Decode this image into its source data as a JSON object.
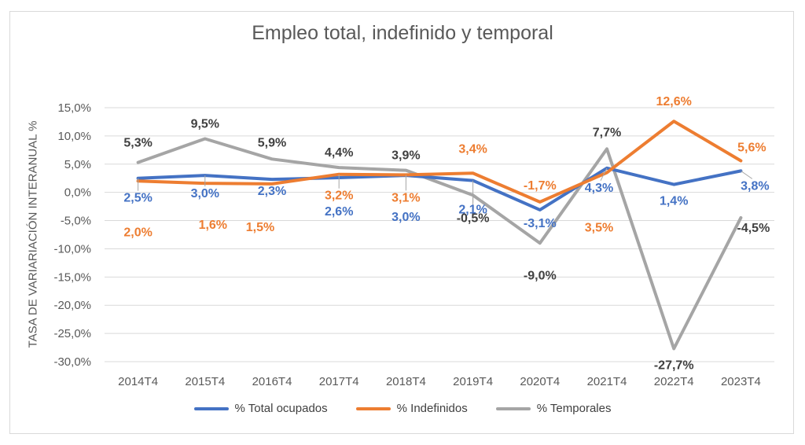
{
  "chart_data": {
    "type": "line",
    "title": "Empleo total, indefinido y temporal",
    "ylabel": "TASA DE VARIARIACIÓN INTERANUAL %",
    "xlabel": "",
    "categories": [
      "2014T4",
      "2015T4",
      "2016T4",
      "2017T4",
      "2018T4",
      "2019T4",
      "2020T4",
      "2021T4",
      "2022T4",
      "2023T4"
    ],
    "ylim": [
      -30,
      15
    ],
    "yticks": [
      15,
      10,
      5,
      0,
      -5,
      -10,
      -15,
      -20,
      -25,
      -30
    ],
    "ytick_labels": [
      "15,0%",
      "10,0%",
      "5,0%",
      "0,0%",
      "-5,0%",
      "-10,0%",
      "-15,0%",
      "-20,0%",
      "-25,0%",
      "-30,0%"
    ],
    "grid": true,
    "legend_position": "bottom",
    "series": [
      {
        "name": "% Total ocupados",
        "color": "#4472c4",
        "values": [
          2.5,
          3.0,
          2.3,
          2.6,
          3.0,
          2.1,
          -3.1,
          4.3,
          1.4,
          3.8
        ],
        "labels": [
          "2,5%",
          "3,0%",
          "2,3%",
          "2,6%",
          "3,0%",
          "2,1%",
          "-3,1%",
          "4,3%",
          "1,4%",
          "3,8%"
        ]
      },
      {
        "name": "% Indefinidos",
        "color": "#ed7d31",
        "values": [
          2.0,
          1.6,
          1.5,
          3.2,
          3.1,
          3.4,
          -1.7,
          3.5,
          12.6,
          5.6
        ],
        "labels": [
          "2,0%",
          "1,6%",
          "1,5%",
          "3,2%",
          "3,1%",
          "3,4%",
          "-1,7%",
          "3,5%",
          "12,6%",
          "5,6%"
        ]
      },
      {
        "name": "% Temporales",
        "color": "#a5a5a5",
        "values": [
          5.3,
          9.5,
          5.9,
          4.4,
          3.9,
          -0.5,
          -9.0,
          7.7,
          -27.7,
          -4.5
        ],
        "labels": [
          "5,3%",
          "9,5%",
          "5,9%",
          "4,4%",
          "3,9%",
          "-0,5%",
          "-9,0%",
          "7,7%",
          "-27,7%",
          "-4,5%"
        ]
      }
    ]
  },
  "colors": {
    "total": "#4472c4",
    "indefinidos": "#ed7d31",
    "temporales": "#a5a5a5",
    "temporales_label": "#404040",
    "grid": "#d9d9d9",
    "axis_text": "#595959"
  }
}
